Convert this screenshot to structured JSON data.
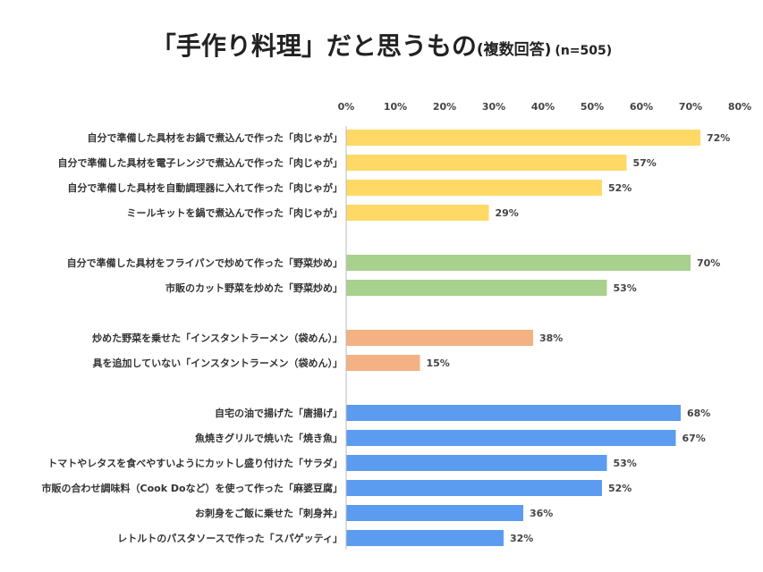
{
  "chart_data": {
    "type": "bar",
    "orientation": "horizontal",
    "title": "「手作り料理」だと思うもの",
    "subtitle": "(複数回答)",
    "sample_note": "(n=505)",
    "xlim": [
      0,
      80
    ],
    "tick_labels": [
      "0%",
      "10%",
      "20%",
      "30%",
      "40%",
      "50%",
      "60%",
      "70%",
      "80%"
    ],
    "unit": "%",
    "grid": false,
    "groups": [
      {
        "color": "#FFD966",
        "items": [
          {
            "category": "自分で準備した具材をお鍋で煮込んで作った「肉じゃが」",
            "value": 72,
            "label": "72%"
          },
          {
            "category": "自分で準備した具材を電子レンジで煮込んで作った「肉じゃが」",
            "value": 57,
            "label": "57%"
          },
          {
            "category": "自分で準備した具材を自動調理器に入れて作った「肉じゃが」",
            "value": 52,
            "label": "52%"
          },
          {
            "category": "ミールキットを鍋で煮込んで作った「肉じゃが」",
            "value": 29,
            "label": "29%"
          }
        ]
      },
      {
        "color": "#A9D18E",
        "items": [
          {
            "category": "自分で準備した具材をフライパンで炒めて作った「野菜炒め」",
            "value": 70,
            "label": "70%"
          },
          {
            "category": "市販のカット野菜を炒めた「野菜炒め」",
            "value": 53,
            "label": "53%"
          }
        ]
      },
      {
        "color": "#F4B183",
        "items": [
          {
            "category": "炒めた野菜を乗せた「インスタントラーメン（袋めん）」",
            "value": 38,
            "label": "38%"
          },
          {
            "category": "具を追加していない「インスタントラーメン（袋めん）」",
            "value": 15,
            "label": "15%"
          }
        ]
      },
      {
        "color": "#5B9BF0",
        "items": [
          {
            "category": "自宅の油で揚げた「唐揚げ」",
            "value": 68,
            "label": "68%"
          },
          {
            "category": "魚焼きグリルで焼いた「焼き魚」",
            "value": 67,
            "label": "67%"
          },
          {
            "category": "トマトやレタスを食べやすいようにカットし盛り付けた「サラダ」",
            "value": 53,
            "label": "53%"
          },
          {
            "category": "市販の合わせ調味料（Cook Doなど）を使って作った「麻婆豆腐」",
            "value": 52,
            "label": "52%"
          },
          {
            "category": "お刺身をご飯に乗せた「刺身丼」",
            "value": 36,
            "label": "36%"
          },
          {
            "category": "レトルトのパスタソースで作った「スパゲッティ」",
            "value": 32,
            "label": "32%"
          }
        ]
      }
    ]
  }
}
